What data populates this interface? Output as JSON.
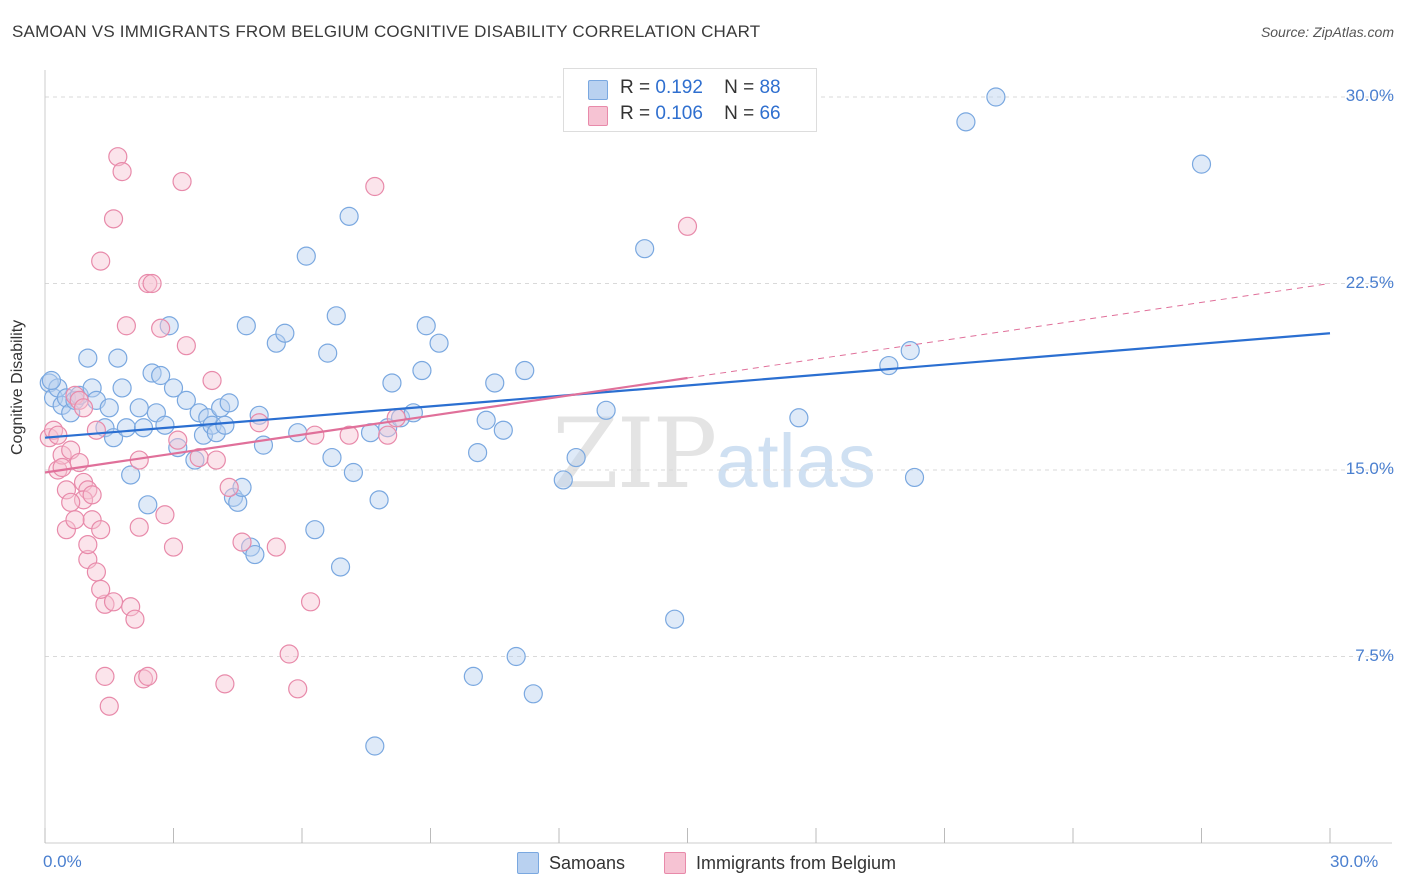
{
  "title": "SAMOAN VS IMMIGRANTS FROM BELGIUM COGNITIVE DISABILITY CORRELATION CHART",
  "source": "Source: ZipAtlas.com",
  "watermark": {
    "part1": "ZIP",
    "part2": "atlas"
  },
  "stats": {
    "samoans": {
      "r_label": "R =",
      "r": "0.192",
      "n_label": "N =",
      "n": "88"
    },
    "belgium": {
      "r_label": "R =",
      "r": "0.106",
      "n_label": "N =",
      "n": "66"
    }
  },
  "legend": {
    "samoans": "Samoans",
    "belgium": "Immigrants from Belgium"
  },
  "colors": {
    "samoans": "#7aa8e0",
    "samoans_fill": "#b9d1f0",
    "belgium": "#e88aaa",
    "belgium_fill": "#f6c3d3",
    "samoans_line": "#2b6fd1",
    "belgium_line": "#e0709a",
    "grid": "#d9d9d9",
    "axis_text": "#4a7fcf"
  },
  "chart_data": {
    "type": "scatter",
    "title": "SAMOAN VS IMMIGRANTS FROM BELGIUM COGNITIVE DISABILITY CORRELATION CHART",
    "xlabel": "",
    "ylabel": "Cognitive Disability",
    "xlim": [
      0,
      30
    ],
    "ylim": [
      0,
      31.5
    ],
    "y_ticks": [
      {
        "v": 7.5,
        "label": "7.5%"
      },
      {
        "v": 15.0,
        "label": "15.0%"
      },
      {
        "v": 22.5,
        "label": "22.5%"
      },
      {
        "v": 30.0,
        "label": "30.0%"
      }
    ],
    "x_ticks": [
      {
        "v": 0,
        "label": "0.0%"
      },
      {
        "v": 30,
        "label": "30.0%"
      }
    ],
    "series": [
      {
        "name": "Samoans",
        "trend": {
          "x0": 0,
          "y0": 16.3,
          "x1": 30,
          "y1": 20.5,
          "dashed_from": null
        },
        "points": [
          [
            0.1,
            18.5
          ],
          [
            0.2,
            17.9
          ],
          [
            0.3,
            18.3
          ],
          [
            0.4,
            17.6
          ],
          [
            0.5,
            17.9
          ],
          [
            0.6,
            17.3
          ],
          [
            0.7,
            17.8
          ],
          [
            0.8,
            18.0
          ],
          [
            1.0,
            19.5
          ],
          [
            1.1,
            18.3
          ],
          [
            1.2,
            17.8
          ],
          [
            1.4,
            16.7
          ],
          [
            1.5,
            17.5
          ],
          [
            1.6,
            16.3
          ],
          [
            1.7,
            19.5
          ],
          [
            1.8,
            18.3
          ],
          [
            1.9,
            16.7
          ],
          [
            2.0,
            14.8
          ],
          [
            2.2,
            17.5
          ],
          [
            2.3,
            16.7
          ],
          [
            2.4,
            13.6
          ],
          [
            2.5,
            18.9
          ],
          [
            2.6,
            17.3
          ],
          [
            2.7,
            18.8
          ],
          [
            2.8,
            16.8
          ],
          [
            2.9,
            20.8
          ],
          [
            3.0,
            18.3
          ],
          [
            3.1,
            15.9
          ],
          [
            3.3,
            17.8
          ],
          [
            3.5,
            15.4
          ],
          [
            3.6,
            17.3
          ],
          [
            3.7,
            16.4
          ],
          [
            3.8,
            17.1
          ],
          [
            3.9,
            16.8
          ],
          [
            4.0,
            16.5
          ],
          [
            4.1,
            17.5
          ],
          [
            4.2,
            16.8
          ],
          [
            4.3,
            17.7
          ],
          [
            4.4,
            13.9
          ],
          [
            4.5,
            13.7
          ],
          [
            4.6,
            14.3
          ],
          [
            4.7,
            20.8
          ],
          [
            4.8,
            11.9
          ],
          [
            4.9,
            11.6
          ],
          [
            5.0,
            17.2
          ],
          [
            5.1,
            16.0
          ],
          [
            5.4,
            20.1
          ],
          [
            5.6,
            20.5
          ],
          [
            5.9,
            16.5
          ],
          [
            6.1,
            23.6
          ],
          [
            6.3,
            12.6
          ],
          [
            6.6,
            19.7
          ],
          [
            6.7,
            15.5
          ],
          [
            6.8,
            21.2
          ],
          [
            6.9,
            11.1
          ],
          [
            7.1,
            25.2
          ],
          [
            7.2,
            14.9
          ],
          [
            7.6,
            16.5
          ],
          [
            7.7,
            3.9
          ],
          [
            7.8,
            13.8
          ],
          [
            8.0,
            16.7
          ],
          [
            8.1,
            18.5
          ],
          [
            8.3,
            17.1
          ],
          [
            8.6,
            17.3
          ],
          [
            8.8,
            19.0
          ],
          [
            8.9,
            20.8
          ],
          [
            9.2,
            20.1
          ],
          [
            10.0,
            6.7
          ],
          [
            10.1,
            15.7
          ],
          [
            10.3,
            17.0
          ],
          [
            10.5,
            18.5
          ],
          [
            10.7,
            16.6
          ],
          [
            11.0,
            7.5
          ],
          [
            11.2,
            19.0
          ],
          [
            11.4,
            6.0
          ],
          [
            12.1,
            14.6
          ],
          [
            12.4,
            15.5
          ],
          [
            13.1,
            17.4
          ],
          [
            14.0,
            23.9
          ],
          [
            14.7,
            9.0
          ],
          [
            17.6,
            17.1
          ],
          [
            19.7,
            19.2
          ],
          [
            20.2,
            19.8
          ],
          [
            20.3,
            14.7
          ],
          [
            21.5,
            29.0
          ],
          [
            22.2,
            30.0
          ],
          [
            27.0,
            27.3
          ],
          [
            0.15,
            18.6
          ]
        ]
      },
      {
        "name": "Immigrants from Belgium",
        "trend": {
          "x0": 0,
          "y0": 14.9,
          "x1": 30,
          "y1": 22.5,
          "solid_until": 15.0
        },
        "points": [
          [
            0.1,
            16.3
          ],
          [
            0.2,
            16.6
          ],
          [
            0.3,
            15.0
          ],
          [
            0.4,
            15.6
          ],
          [
            0.5,
            14.2
          ],
          [
            0.6,
            15.8
          ],
          [
            0.7,
            18.0
          ],
          [
            0.8,
            15.3
          ],
          [
            0.9,
            14.5
          ],
          [
            1.0,
            14.2
          ],
          [
            1.1,
            13.0
          ],
          [
            1.2,
            16.6
          ],
          [
            1.3,
            12.6
          ],
          [
            1.4,
            9.6
          ],
          [
            1.5,
            5.5
          ],
          [
            1.6,
            25.1
          ],
          [
            1.7,
            27.6
          ],
          [
            1.8,
            27.0
          ],
          [
            1.9,
            20.8
          ],
          [
            2.0,
            9.5
          ],
          [
            2.1,
            9.0
          ],
          [
            2.2,
            15.4
          ],
          [
            2.4,
            22.5
          ],
          [
            2.5,
            22.5
          ],
          [
            2.7,
            20.7
          ],
          [
            2.8,
            13.2
          ],
          [
            3.0,
            11.9
          ],
          [
            3.1,
            16.2
          ],
          [
            3.2,
            26.6
          ],
          [
            3.3,
            20.0
          ],
          [
            3.6,
            15.5
          ],
          [
            3.9,
            18.6
          ],
          [
            4.0,
            15.4
          ],
          [
            4.2,
            6.4
          ],
          [
            4.3,
            14.3
          ],
          [
            4.6,
            12.1
          ],
          [
            5.0,
            16.9
          ],
          [
            5.4,
            11.9
          ],
          [
            5.7,
            7.6
          ],
          [
            5.9,
            6.2
          ],
          [
            6.2,
            9.7
          ],
          [
            6.3,
            16.4
          ],
          [
            7.1,
            16.4
          ],
          [
            7.7,
            26.4
          ],
          [
            8.0,
            16.4
          ],
          [
            8.2,
            17.1
          ],
          [
            1.0,
            11.4
          ],
          [
            1.2,
            10.9
          ],
          [
            1.3,
            10.2
          ],
          [
            0.9,
            13.8
          ],
          [
            1.1,
            14.0
          ],
          [
            1.0,
            12.0
          ],
          [
            0.5,
            12.6
          ],
          [
            0.6,
            13.7
          ],
          [
            0.8,
            17.8
          ],
          [
            0.7,
            13.0
          ],
          [
            2.3,
            6.6
          ],
          [
            2.4,
            6.7
          ],
          [
            1.6,
            9.7
          ],
          [
            1.3,
            23.4
          ],
          [
            2.2,
            12.7
          ],
          [
            0.9,
            17.5
          ],
          [
            0.4,
            15.1
          ],
          [
            15.0,
            24.8
          ],
          [
            1.4,
            6.7
          ],
          [
            0.3,
            16.4
          ]
        ]
      }
    ]
  }
}
